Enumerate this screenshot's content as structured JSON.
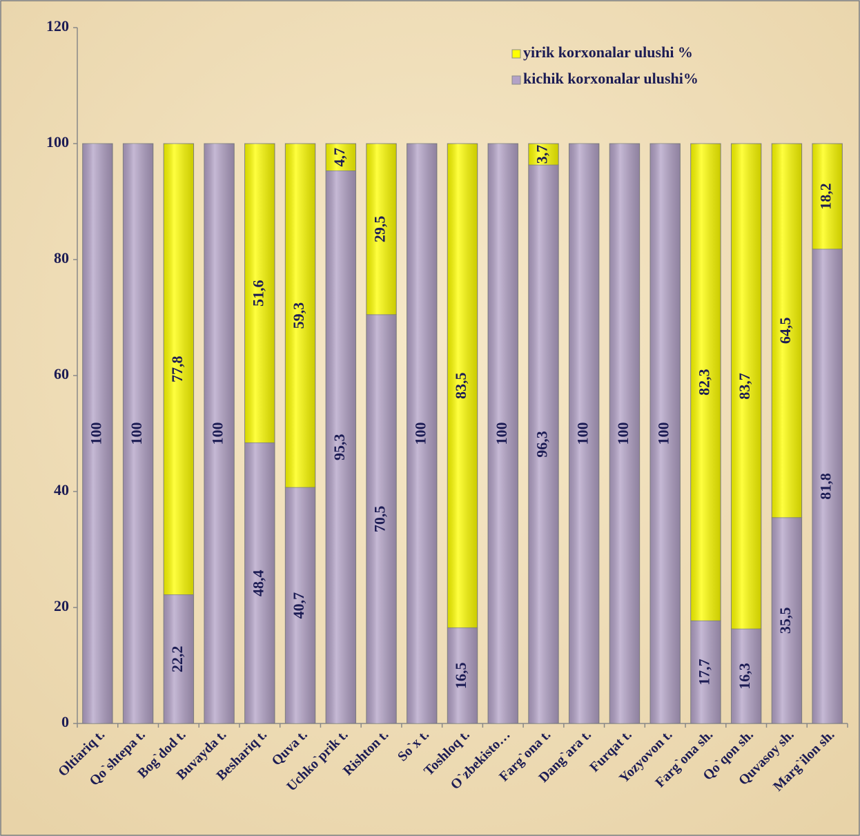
{
  "chart_data": {
    "type": "stacked_bar",
    "categories": [
      "Oltiariq t.",
      "Qo`shtepa t.",
      "Bog`dod t.",
      "Buvayda t.",
      "Beshariq t.",
      "Quva t.",
      "Uchko`prik t.",
      "Rishton t.",
      "So`x t.",
      "Toshloq t.",
      "O`zbekisto…",
      "Farg`ona t.",
      "Dang`ara t.",
      "Furqat t.",
      "Yozyovon t.",
      "Farg`ona sh.",
      "Qo`qon sh.",
      "Quvasoy sh.",
      "Marg`ilon sh."
    ],
    "series": [
      {
        "name": "kichik korxonalar ulushi%",
        "color": "#b3a2c7",
        "values": [
          100,
          100,
          22.2,
          100,
          48.4,
          40.7,
          95.3,
          70.5,
          100,
          16.5,
          100,
          96.3,
          100,
          100,
          100,
          17.7,
          16.3,
          35.5,
          81.8
        ],
        "value_labels": [
          "100",
          "100",
          "22,2",
          "100",
          "48,4",
          "40,7",
          "95,3",
          "70,5",
          "100",
          "16,5",
          "100",
          "96,3",
          "100",
          "100",
          "100",
          "17,7",
          "16,3",
          "35,5",
          "81,8"
        ]
      },
      {
        "name": "yirik korxonalar ulushi %",
        "color": "#ffff00",
        "values": [
          0,
          0,
          77.8,
          0,
          51.6,
          59.3,
          4.7,
          29.5,
          0,
          83.5,
          0,
          3.7,
          0,
          0,
          0,
          82.3,
          83.7,
          64.5,
          18.2
        ],
        "value_labels": [
          null,
          null,
          "77,8",
          null,
          "51,6",
          "59,3",
          "4,7",
          "29,5",
          null,
          "83,5",
          null,
          "3,7",
          null,
          null,
          null,
          "82,3",
          "83,7",
          "64,5",
          "18,2"
        ]
      }
    ],
    "ylim": [
      0,
      120
    ],
    "yticks": [
      0,
      20,
      40,
      60,
      80,
      100,
      120
    ],
    "grid": false,
    "legend": "upper right"
  }
}
